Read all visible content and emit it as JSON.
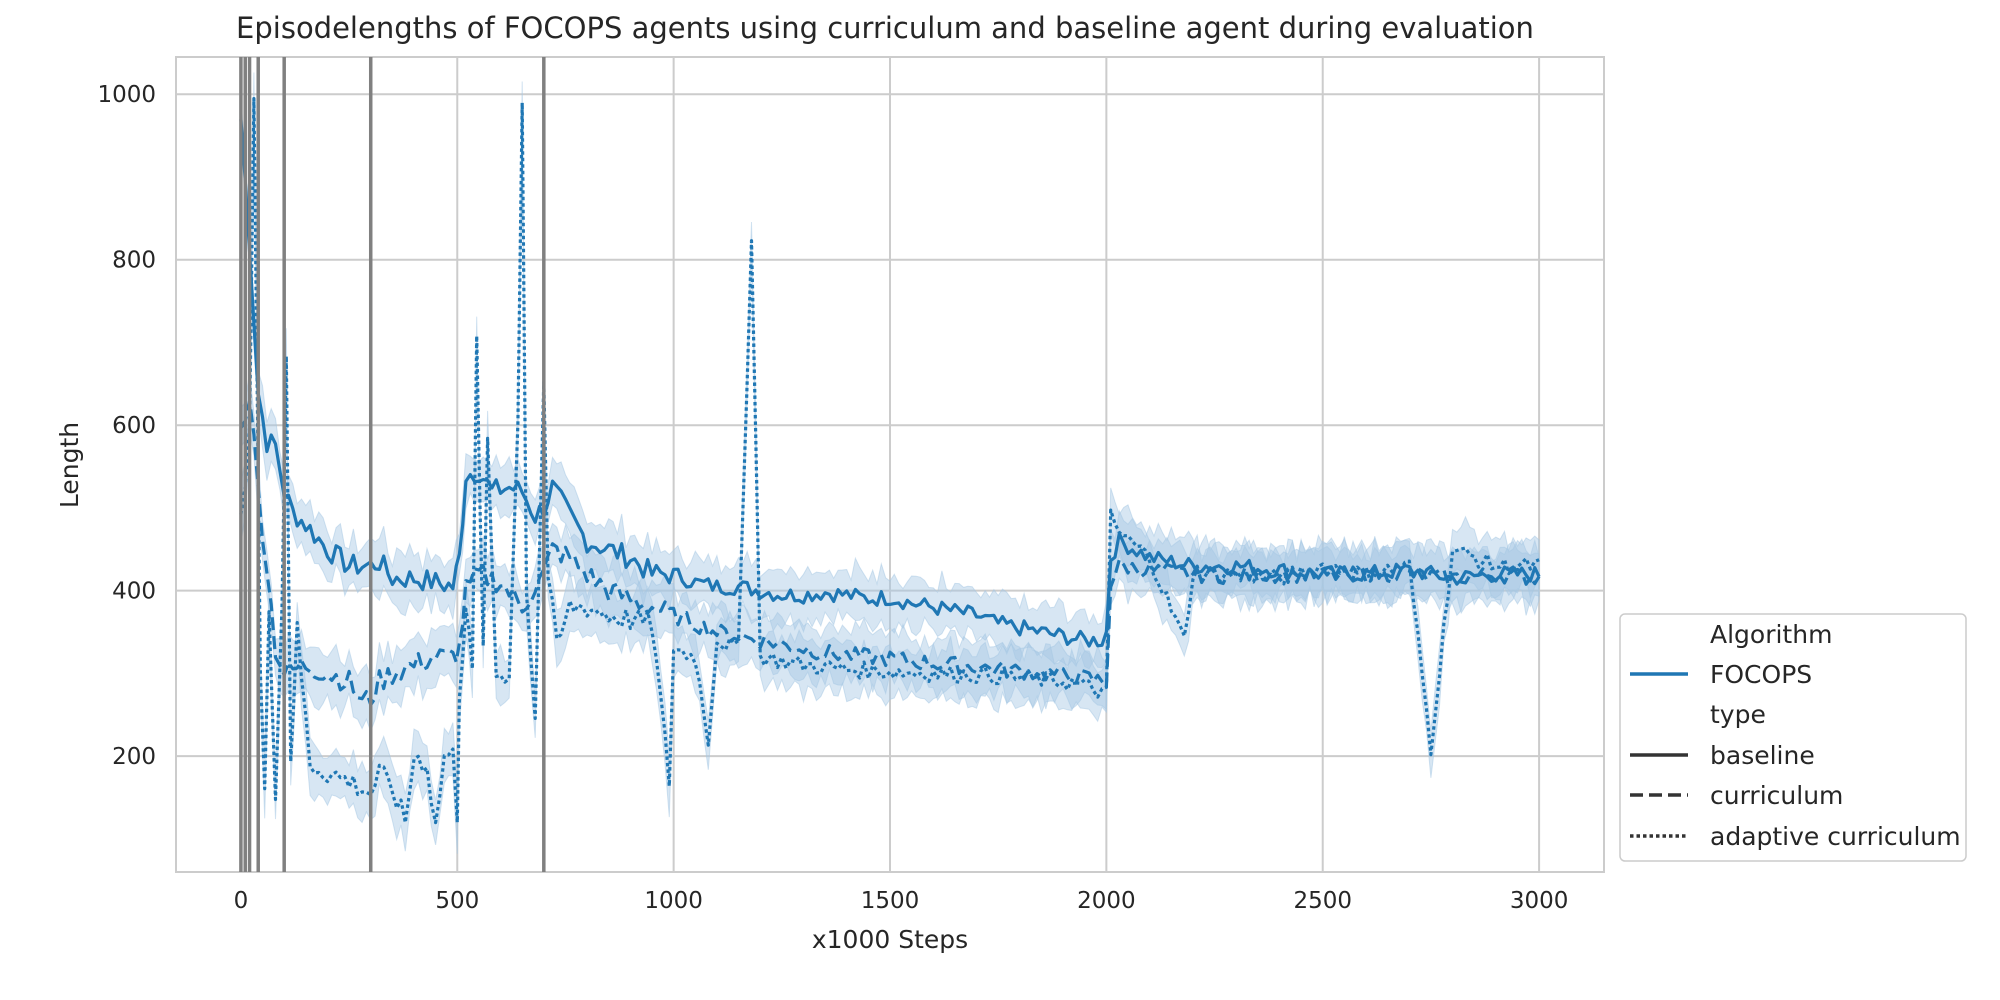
{
  "chart_data": {
    "type": "line",
    "title": "Episodelengths of FOCOPS agents using curriculum and baseline agent during evaluation",
    "xlabel": "x1000 Steps",
    "ylabel": "Length",
    "xlim": [
      -150,
      3150
    ],
    "ylim": [
      60,
      1045
    ],
    "xticks": [
      0,
      500,
      1000,
      1500,
      2000,
      2500,
      3000
    ],
    "yticks": [
      200,
      400,
      600,
      800,
      1000
    ],
    "grid": true,
    "color": "#1f77b4",
    "band_color": "#a6c8e4",
    "vline_color": "#808080",
    "vlines": [
      0,
      10,
      20,
      40,
      100,
      300,
      700
    ],
    "legend": {
      "placement": "lower-right outside",
      "title_algorithm": "Algorithm",
      "algorithm_entry": "FOCOPS",
      "title_type": "type",
      "entries": [
        "baseline",
        "curriculum",
        "adaptive curriculum"
      ]
    },
    "series": [
      {
        "name": "baseline",
        "style": "solid",
        "points": [
          [
            0,
            970
          ],
          [
            20,
            820
          ],
          [
            40,
            640
          ],
          [
            60,
            580
          ],
          [
            80,
            575
          ],
          [
            100,
            520
          ],
          [
            120,
            495
          ],
          [
            150,
            480
          ],
          [
            200,
            450
          ],
          [
            250,
            430
          ],
          [
            300,
            430
          ],
          [
            320,
            435
          ],
          [
            350,
            415
          ],
          [
            400,
            415
          ],
          [
            450,
            410
          ],
          [
            490,
            405
          ],
          [
            505,
            440
          ],
          [
            520,
            540
          ],
          [
            550,
            545
          ],
          [
            580,
            520
          ],
          [
            620,
            525
          ],
          [
            650,
            520
          ],
          [
            680,
            490
          ],
          [
            700,
            500
          ],
          [
            720,
            525
          ],
          [
            760,
            490
          ],
          [
            800,
            460
          ],
          [
            850,
            450
          ],
          [
            900,
            440
          ],
          [
            950,
            420
          ],
          [
            1000,
            420
          ],
          [
            1050,
            410
          ],
          [
            1100,
            405
          ],
          [
            1150,
            405
          ],
          [
            1200,
            400
          ],
          [
            1250,
            395
          ],
          [
            1300,
            395
          ],
          [
            1350,
            398
          ],
          [
            1400,
            395
          ],
          [
            1450,
            390
          ],
          [
            1500,
            392
          ],
          [
            1550,
            385
          ],
          [
            1600,
            380
          ],
          [
            1650,
            375
          ],
          [
            1700,
            370
          ],
          [
            1750,
            360
          ],
          [
            1800,
            355
          ],
          [
            1850,
            350
          ],
          [
            1900,
            345
          ],
          [
            1950,
            340
          ],
          [
            1990,
            340
          ],
          [
            2000,
            350
          ],
          [
            2010,
            440
          ],
          [
            2030,
            460
          ],
          [
            2100,
            440
          ],
          [
            2200,
            430
          ],
          [
            2300,
            430
          ],
          [
            2400,
            425
          ],
          [
            2500,
            420
          ],
          [
            2600,
            420
          ],
          [
            2700,
            425
          ],
          [
            2800,
            415
          ],
          [
            2900,
            420
          ],
          [
            3000,
            420
          ]
        ]
      },
      {
        "name": "curriculum",
        "style": "dashed",
        "points": [
          [
            0,
            590
          ],
          [
            20,
            640
          ],
          [
            40,
            520
          ],
          [
            60,
            430
          ],
          [
            80,
            330
          ],
          [
            100,
            300
          ],
          [
            150,
            310
          ],
          [
            200,
            300
          ],
          [
            250,
            290
          ],
          [
            280,
            265
          ],
          [
            300,
            270
          ],
          [
            320,
            290
          ],
          [
            350,
            300
          ],
          [
            400,
            310
          ],
          [
            450,
            320
          ],
          [
            490,
            320
          ],
          [
            505,
            330
          ],
          [
            520,
            400
          ],
          [
            550,
            420
          ],
          [
            600,
            410
          ],
          [
            650,
            380
          ],
          [
            700,
            420
          ],
          [
            720,
            450
          ],
          [
            760,
            440
          ],
          [
            800,
            420
          ],
          [
            850,
            400
          ],
          [
            900,
            390
          ],
          [
            950,
            380
          ],
          [
            1000,
            370
          ],
          [
            1050,
            360
          ],
          [
            1100,
            350
          ],
          [
            1150,
            345
          ],
          [
            1200,
            340
          ],
          [
            1250,
            335
          ],
          [
            1300,
            330
          ],
          [
            1350,
            325
          ],
          [
            1400,
            322
          ],
          [
            1500,
            318
          ],
          [
            1600,
            312
          ],
          [
            1700,
            308
          ],
          [
            1800,
            303
          ],
          [
            1900,
            298
          ],
          [
            1950,
            295
          ],
          [
            2000,
            290
          ],
          [
            2010,
            410
          ],
          [
            2030,
            430
          ],
          [
            2100,
            425
          ],
          [
            2200,
            420
          ],
          [
            2300,
            418
          ],
          [
            2400,
            420
          ],
          [
            2500,
            418
          ],
          [
            2600,
            420
          ],
          [
            2700,
            420
          ],
          [
            2800,
            415
          ],
          [
            2900,
            420
          ],
          [
            3000,
            415
          ]
        ]
      },
      {
        "name": "adaptive curriculum",
        "style": "dotted",
        "points": [
          [
            0,
            480
          ],
          [
            20,
            600
          ],
          [
            30,
            1000
          ],
          [
            45,
            300
          ],
          [
            55,
            150
          ],
          [
            65,
            380
          ],
          [
            80,
            160
          ],
          [
            95,
            380
          ],
          [
            105,
            690
          ],
          [
            115,
            200
          ],
          [
            130,
            350
          ],
          [
            160,
            190
          ],
          [
            200,
            180
          ],
          [
            250,
            170
          ],
          [
            300,
            155
          ],
          [
            320,
            180
          ],
          [
            350,
            160
          ],
          [
            380,
            120
          ],
          [
            400,
            200
          ],
          [
            430,
            190
          ],
          [
            450,
            115
          ],
          [
            470,
            200
          ],
          [
            490,
            200
          ],
          [
            500,
            130
          ],
          [
            505,
            280
          ],
          [
            520,
            380
          ],
          [
            535,
            300
          ],
          [
            545,
            700
          ],
          [
            560,
            320
          ],
          [
            570,
            580
          ],
          [
            590,
            300
          ],
          [
            620,
            300
          ],
          [
            640,
            600
          ],
          [
            650,
            1000
          ],
          [
            660,
            400
          ],
          [
            680,
            250
          ],
          [
            700,
            650
          ],
          [
            710,
            420
          ],
          [
            730,
            330
          ],
          [
            760,
            380
          ],
          [
            800,
            380
          ],
          [
            850,
            370
          ],
          [
            900,
            365
          ],
          [
            950,
            360
          ],
          [
            990,
            170
          ],
          [
            1000,
            330
          ],
          [
            1050,
            320
          ],
          [
            1080,
            220
          ],
          [
            1100,
            340
          ],
          [
            1150,
            330
          ],
          [
            1180,
            830
          ],
          [
            1200,
            320
          ],
          [
            1250,
            315
          ],
          [
            1300,
            310
          ],
          [
            1400,
            305
          ],
          [
            1500,
            302
          ],
          [
            1600,
            300
          ],
          [
            1700,
            298
          ],
          [
            1800,
            295
          ],
          [
            1900,
            290
          ],
          [
            1950,
            285
          ],
          [
            2000,
            275
          ],
          [
            2010,
            490
          ],
          [
            2030,
            470
          ],
          [
            2100,
            440
          ],
          [
            2180,
            340
          ],
          [
            2200,
            420
          ],
          [
            2300,
            420
          ],
          [
            2400,
            415
          ],
          [
            2500,
            430
          ],
          [
            2600,
            420
          ],
          [
            2700,
            430
          ],
          [
            2750,
            210
          ],
          [
            2800,
            450
          ],
          [
            2900,
            430
          ],
          [
            3000,
            430
          ]
        ]
      }
    ]
  }
}
